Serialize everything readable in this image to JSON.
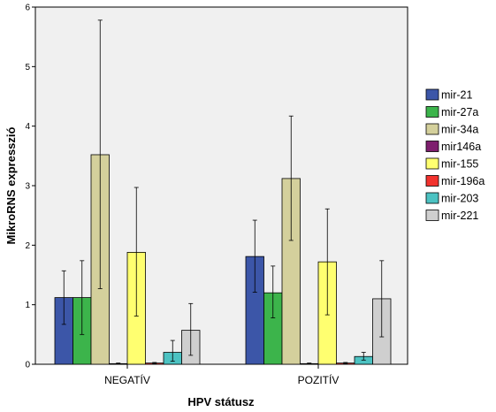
{
  "chart_data": {
    "type": "bar",
    "xlabel": "HPV státusz",
    "ylabel": "MikroRNS expresszió",
    "ylim": [
      0,
      6
    ],
    "yticks": [
      "0",
      "1",
      "2",
      "3",
      "4",
      "5",
      "6"
    ],
    "categories": [
      "NEGATÍV",
      "POZITÍV"
    ],
    "legend_position": "right",
    "grid": false,
    "series": [
      {
        "name": "mir-21",
        "color": "#3c56a8",
        "values": [
          1.12,
          1.81
        ],
        "error_low": [
          0.67,
          1.21
        ],
        "error_high": [
          1.57,
          2.42
        ]
      },
      {
        "name": "mir-27a",
        "color": "#3cb44b",
        "values": [
          1.12,
          1.2
        ],
        "error_low": [
          0.5,
          0.78
        ],
        "error_high": [
          1.74,
          1.65
        ]
      },
      {
        "name": "mir-34a",
        "color": "#d4d09c",
        "values": [
          3.52,
          3.12
        ],
        "error_low": [
          1.27,
          2.08
        ],
        "error_high": [
          5.78,
          4.17
        ]
      },
      {
        "name": "mir146a",
        "color": "#7e1f6e",
        "values": [
          0.01,
          0.01
        ],
        "error_low": [
          0.0,
          0.0
        ],
        "error_high": [
          0.02,
          0.02
        ]
      },
      {
        "name": "mir-155",
        "color": "#ffff70",
        "values": [
          1.88,
          1.72
        ],
        "error_low": [
          0.81,
          0.83
        ],
        "error_high": [
          2.97,
          2.61
        ]
      },
      {
        "name": "mir-196a",
        "color": "#f2332e",
        "values": [
          0.02,
          0.02
        ],
        "error_low": [
          0.01,
          0.01
        ],
        "error_high": [
          0.03,
          0.03
        ]
      },
      {
        "name": "mir-203",
        "color": "#4cc2c2",
        "values": [
          0.2,
          0.13
        ],
        "error_low": [
          0.05,
          0.07
        ],
        "error_high": [
          0.4,
          0.2
        ]
      },
      {
        "name": "mir-221",
        "color": "#cfcfcf",
        "values": [
          0.57,
          1.1
        ],
        "error_low": [
          0.15,
          0.46
        ],
        "error_high": [
          1.02,
          1.74
        ]
      }
    ]
  }
}
